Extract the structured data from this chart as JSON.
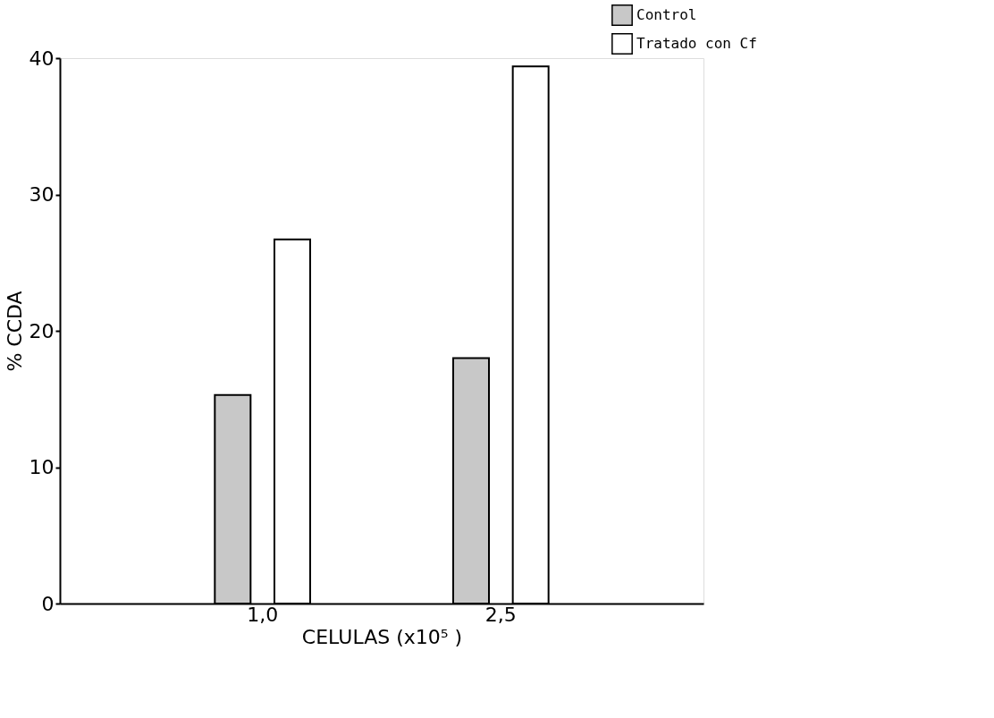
{
  "chart_data": {
    "type": "bar",
    "xlabel": "CELULAS (x10⁵ )",
    "ylabel": "% CCDA",
    "categories": [
      "1,0",
      "2,5"
    ],
    "series": [
      {
        "name": "Control",
        "color": "#c8c8c8",
        "values": [
          15.3,
          18.0
        ]
      },
      {
        "name": "Tratado con Cf",
        "color": "#ffffff",
        "values": [
          26.7,
          39.4
        ]
      }
    ],
    "ylim": [
      0,
      40
    ],
    "yticks": [
      0,
      10,
      20,
      30,
      40
    ],
    "grid": false,
    "legend": "top right"
  }
}
